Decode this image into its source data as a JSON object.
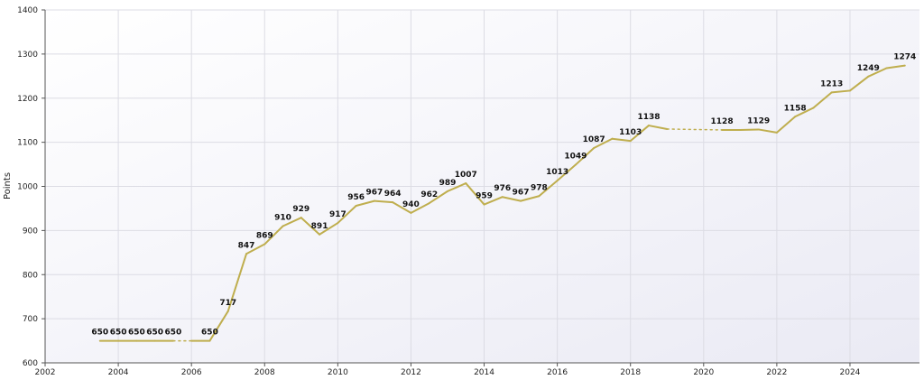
{
  "chart_data": {
    "type": "line",
    "ylabel": "Points",
    "xlim": [
      2002,
      2025.9
    ],
    "ylim": [
      600,
      1400
    ],
    "x_ticks": [
      2002,
      2004,
      2006,
      2008,
      2010,
      2012,
      2014,
      2016,
      2018,
      2020,
      2022,
      2024
    ],
    "y_ticks": [
      600,
      700,
      800,
      900,
      1000,
      1100,
      1200,
      1300,
      1400
    ],
    "grid": true,
    "line_color": "#bfae4e",
    "series": [
      {
        "points": [
          {
            "x": 2003.5,
            "y": 650,
            "label": "650"
          },
          {
            "x": 2004.0,
            "y": 650,
            "label": "650"
          },
          {
            "x": 2004.5,
            "y": 650,
            "label": "650"
          },
          {
            "x": 2005.0,
            "y": 650,
            "label": "650"
          },
          {
            "x": 2005.5,
            "y": 650,
            "label": "650"
          },
          {
            "x": 2006.0,
            "y": 650,
            "gap_before": true
          },
          {
            "x": 2006.5,
            "y": 650,
            "label": "650"
          },
          {
            "x": 2007.0,
            "y": 717,
            "label": "717"
          },
          {
            "x": 2007.5,
            "y": 847,
            "label": "847"
          },
          {
            "x": 2008.0,
            "y": 869,
            "label": "869"
          },
          {
            "x": 2008.5,
            "y": 910,
            "label": "910"
          },
          {
            "x": 2009.0,
            "y": 929,
            "label": "929"
          },
          {
            "x": 2009.5,
            "y": 891,
            "label": "891"
          },
          {
            "x": 2010.0,
            "y": 917,
            "label": "917"
          },
          {
            "x": 2010.5,
            "y": 956,
            "label": "956"
          },
          {
            "x": 2011.0,
            "y": 967,
            "label": "967"
          },
          {
            "x": 2011.5,
            "y": 964,
            "label": "964"
          },
          {
            "x": 2012.0,
            "y": 940,
            "label": "940"
          },
          {
            "x": 2012.5,
            "y": 962,
            "label": "962"
          },
          {
            "x": 2013.0,
            "y": 989,
            "label": "989"
          },
          {
            "x": 2013.5,
            "y": 1007,
            "label": "1007"
          },
          {
            "x": 2014.0,
            "y": 959,
            "label": "959"
          },
          {
            "x": 2014.5,
            "y": 976,
            "label": "976"
          },
          {
            "x": 2015.0,
            "y": 967,
            "label": "967"
          },
          {
            "x": 2015.5,
            "y": 978,
            "label": "978"
          },
          {
            "x": 2016.0,
            "y": 1013,
            "label": "1013"
          },
          {
            "x": 2016.5,
            "y": 1049,
            "label": "1049"
          },
          {
            "x": 2017.0,
            "y": 1087,
            "label": "1087"
          },
          {
            "x": 2017.5,
            "y": 1108
          },
          {
            "x": 2018.0,
            "y": 1103,
            "label": "1103"
          },
          {
            "x": 2018.5,
            "y": 1138,
            "label": "1138"
          },
          {
            "x": 2019.0,
            "y": 1130
          },
          {
            "x": 2020.5,
            "y": 1128,
            "label": "1128",
            "gap_before": true
          },
          {
            "x": 2021.0,
            "y": 1128
          },
          {
            "x": 2021.5,
            "y": 1129,
            "label": "1129"
          },
          {
            "x": 2022.0,
            "y": 1122
          },
          {
            "x": 2022.5,
            "y": 1158,
            "label": "1158"
          },
          {
            "x": 2023.0,
            "y": 1178
          },
          {
            "x": 2023.5,
            "y": 1213,
            "label": "1213"
          },
          {
            "x": 2024.0,
            "y": 1217
          },
          {
            "x": 2024.5,
            "y": 1249,
            "label": "1249"
          },
          {
            "x": 2025.0,
            "y": 1268
          },
          {
            "x": 2025.5,
            "y": 1274,
            "label": "1274"
          }
        ]
      }
    ]
  }
}
